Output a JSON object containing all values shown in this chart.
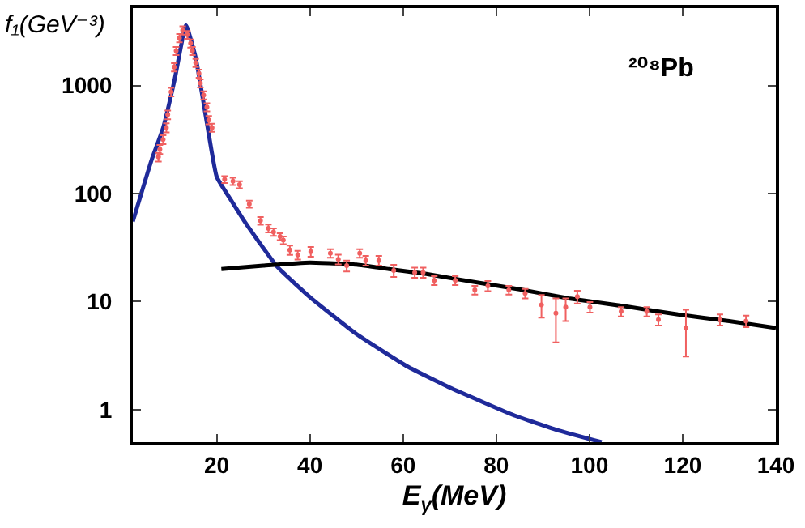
{
  "chart_data": {
    "type": "scatter",
    "xlabel": "E$_{γ}$(MeV)",
    "ylabel": "f₁(GeV⁻³)",
    "annotations": [
      "²⁰⁸Pb"
    ],
    "log": "y",
    "xlim": [
      2,
      140
    ],
    "ylim": [
      0.5,
      5200
    ],
    "xticks": [
      20,
      40,
      60,
      80,
      100,
      120,
      140
    ],
    "yticks": [
      1,
      10,
      100,
      1000
    ],
    "grid": false,
    "legend": false,
    "series": [
      {
        "type": "line",
        "color": "#1f2a9a",
        "line_style": "solid",
        "x": [
          2,
          6,
          8.5,
          11,
          13.4,
          15.5,
          17.9,
          20,
          23,
          26,
          29,
          33,
          40,
          50,
          61,
          70,
          84,
          93,
          102.6
        ],
        "values": [
          55,
          203,
          405,
          1150,
          3600,
          1800,
          450,
          143,
          88,
          55,
          36,
          21,
          11,
          5,
          2.5,
          1.6,
          0.88,
          0.65,
          0.5
        ]
      },
      {
        "type": "line",
        "color": "#000000",
        "line_style": "solid",
        "x": [
          21,
          30,
          40,
          50,
          57,
          65,
          72,
          85,
          95.6,
          108,
          119,
          130,
          140
        ],
        "values": [
          20,
          21.5,
          23,
          22,
          20,
          18,
          16,
          13,
          10.7,
          9,
          7.6,
          6.6,
          5.7
        ]
      },
      {
        "color": "#f06060",
        "marker": "circle",
        "x": [
          7.5,
          7.8,
          8.5,
          9.2,
          9.5,
          10.2,
          10.9,
          11.3,
          12.0,
          12.7,
          13.7,
          14.4,
          14.8,
          15.5,
          16.2,
          16.5,
          17.2,
          17.9,
          18.3,
          19.0,
          21.7,
          23.5,
          24.9,
          27,
          29.4,
          31.1,
          32.2,
          33.6,
          34.3,
          35.7,
          37.4,
          40.2,
          44.4,
          46.1,
          47.9,
          50.7,
          52,
          54.8,
          58,
          62.5,
          64.3,
          66.7,
          71.2,
          75.4,
          78.2,
          82.7,
          86.2,
          89.7,
          92.8,
          94.9,
          97.4,
          100.1,
          106.8,
          112.3,
          114.8,
          120.7,
          128,
          133.6
        ],
        "values": [
          218,
          257,
          316,
          407,
          537,
          871,
          1480,
          2090,
          2750,
          3240,
          2950,
          2450,
          2090,
          1620,
          1290,
          1050,
          813,
          631,
          479,
          407,
          135,
          130,
          121,
          80,
          56,
          47.6,
          44,
          40,
          37,
          30,
          27,
          29,
          28,
          24.6,
          21.5,
          28,
          24,
          24,
          19.4,
          18.6,
          18.6,
          15.7,
          15.7,
          12.8,
          14,
          12.8,
          11.9,
          9.3,
          7.8,
          8.9,
          11.1,
          8.9,
          8.1,
          8.1,
          6.8,
          5.7,
          6.8,
          6.6
        ],
        "errors": [
          20,
          25,
          30,
          40,
          50,
          80,
          130,
          180,
          240,
          280,
          250,
          210,
          180,
          140,
          110,
          90,
          70,
          55,
          42,
          35,
          10,
          10,
          9,
          6,
          4.5,
          4,
          3.5,
          3,
          3,
          3,
          2.5,
          3,
          2.5,
          2.5,
          2.5,
          2.5,
          2.5,
          2.5,
          2.5,
          2,
          2,
          1.5,
          1.5,
          1.2,
          1.5,
          1.2,
          1.2,
          [
            7.1,
            11.5
          ],
          [
            4.2,
            10.7
          ],
          [
            6.6,
            10.7
          ],
          1.5,
          1,
          0.8,
          0.8,
          0.8,
          [
            3.1,
            8.4
          ],
          0.8,
          0.8
        ]
      }
    ]
  }
}
